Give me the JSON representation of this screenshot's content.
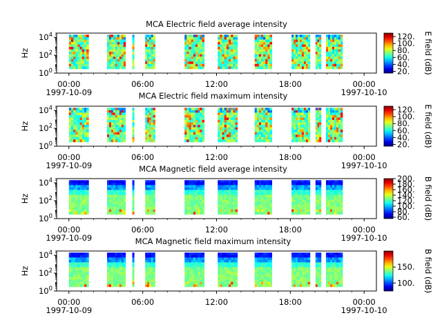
{
  "chart_data": [
    {
      "type": "heatmap",
      "title": "MCA  Electric field average intensity",
      "ylabel": "Hz",
      "ylim": [
        1,
        30000
      ],
      "yscale": "log",
      "yticks": [
        {
          "v": 1,
          "base": "10",
          "exp": "0"
        },
        {
          "v": 100,
          "base": "10",
          "exp": "2"
        },
        {
          "v": 10000,
          "base": "10",
          "exp": "4"
        }
      ],
      "colorbar": {
        "label": "E field (dB)",
        "range": [
          15,
          130
        ],
        "ticks": [
          "20.",
          "40.",
          "60.",
          "80.",
          "100.",
          "120."
        ],
        "tick_values": [
          20,
          40,
          60,
          80,
          100,
          120
        ],
        "colormap": "jet"
      }
    },
    {
      "type": "heatmap",
      "title": "MCA  Electric field maximum intensity",
      "ylabel": "Hz",
      "ylim": [
        1,
        30000
      ],
      "yscale": "log",
      "yticks": [
        {
          "v": 1,
          "base": "10",
          "exp": "0"
        },
        {
          "v": 100,
          "base": "10",
          "exp": "2"
        },
        {
          "v": 10000,
          "base": "10",
          "exp": "4"
        }
      ],
      "colorbar": {
        "label": "E field (dB)",
        "range": [
          15,
          130
        ],
        "ticks": [
          "20.",
          "40.",
          "60.",
          "80.",
          "100.",
          "120."
        ],
        "tick_values": [
          20,
          40,
          60,
          80,
          100,
          120
        ],
        "colormap": "jet"
      }
    },
    {
      "type": "heatmap",
      "title": "MCA  Magnetic field average intensity",
      "ylabel": "Hz",
      "ylim": [
        1,
        30000
      ],
      "yscale": "log",
      "yticks": [
        {
          "v": 1,
          "base": "10",
          "exp": "0"
        },
        {
          "v": 100,
          "base": "10",
          "exp": "2"
        },
        {
          "v": 10000,
          "base": "10",
          "exp": "4"
        }
      ],
      "colorbar": {
        "label": "B field (dB)",
        "range": [
          55,
          200
        ],
        "ticks": [
          "60.",
          "80.",
          "100.",
          "120.",
          "140.",
          "160.",
          "180.",
          "200."
        ],
        "tick_values": [
          60,
          80,
          100,
          120,
          140,
          160,
          180,
          200
        ],
        "colormap": "jet"
      }
    },
    {
      "type": "heatmap",
      "title": "MCA  Magnetic field maximum intensity",
      "ylabel": "Hz",
      "ylim": [
        1,
        30000
      ],
      "yscale": "log",
      "yticks": [
        {
          "v": 1,
          "base": "10",
          "exp": "0"
        },
        {
          "v": 100,
          "base": "10",
          "exp": "2"
        },
        {
          "v": 10000,
          "base": "10",
          "exp": "4"
        }
      ],
      "colorbar": {
        "label": "B field (dB)",
        "range": [
          75,
          200
        ],
        "ticks": [
          "100.",
          "150."
        ],
        "tick_values": [
          100,
          150
        ],
        "colormap": "jet"
      }
    }
  ],
  "shared_x": {
    "range_hours": [
      -1.0,
      25.0
    ],
    "ticks": [
      {
        "hour": 0,
        "label": "00:00",
        "date": "1997-10-09"
      },
      {
        "hour": 6,
        "label": "06:00",
        "date": ""
      },
      {
        "hour": 12,
        "label": "12:00",
        "date": ""
      },
      {
        "hour": 18,
        "label": "18:00",
        "date": ""
      },
      {
        "hour": 24,
        "label": "00:00",
        "date": "1997-10-10"
      }
    ],
    "data_segments_hours": [
      [
        0.0,
        1.6
      ],
      [
        3.1,
        4.6
      ],
      [
        5.15,
        5.3
      ],
      [
        6.2,
        7.0
      ],
      [
        9.4,
        11.0
      ],
      [
        12.1,
        13.7
      ],
      [
        15.1,
        16.5
      ],
      [
        18.1,
        19.6
      ],
      [
        20.05,
        20.5
      ],
      [
        20.9,
        22.25
      ]
    ]
  }
}
